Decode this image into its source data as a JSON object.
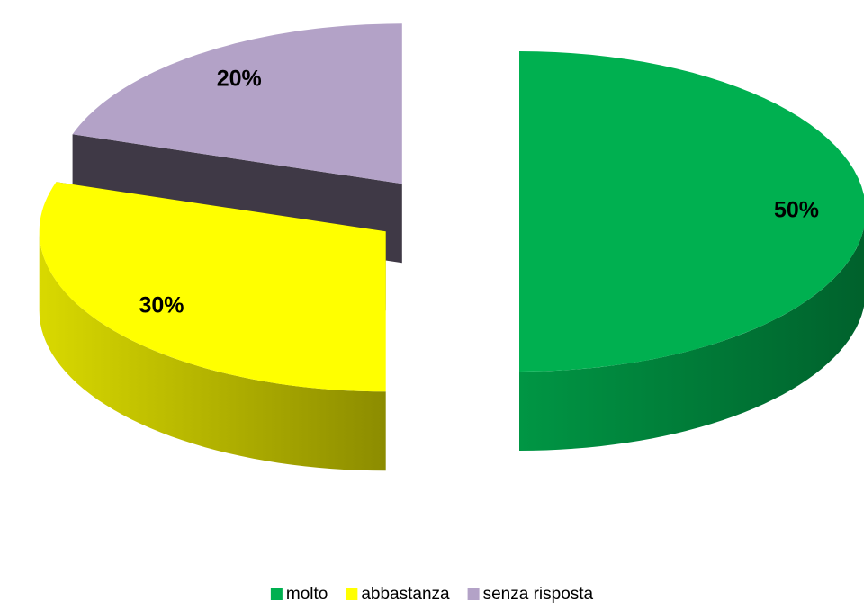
{
  "chart_data": {
    "type": "pie",
    "categories": [
      "molto",
      "abbastanza",
      "senza risposta"
    ],
    "values": [
      50,
      30,
      20
    ],
    "value_labels": [
      "50%",
      "30%",
      "20%"
    ],
    "colors": [
      "#00b050",
      "#ffff00",
      "#b3a2c7"
    ],
    "legend": "bottom"
  }
}
